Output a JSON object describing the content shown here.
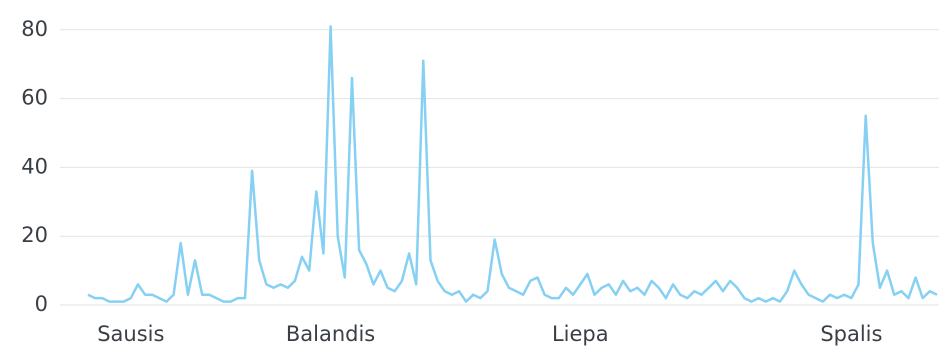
{
  "chart_data": {
    "type": "line",
    "categories": [
      null,
      null,
      null,
      null,
      null,
      null,
      "Sausis",
      null,
      null,
      null,
      null,
      null,
      null,
      null,
      null,
      null,
      null,
      null,
      null,
      null,
      null,
      null,
      null,
      null,
      null,
      null,
      null,
      null,
      null,
      null,
      null,
      null,
      null,
      null,
      "Balandis",
      null,
      null,
      null,
      null,
      null,
      null,
      null,
      null,
      null,
      null,
      null,
      null,
      null,
      null,
      null,
      null,
      null,
      null,
      null,
      null,
      null,
      null,
      null,
      null,
      null,
      null,
      null,
      null,
      null,
      null,
      null,
      null,
      null,
      null,
      "Liepa",
      null,
      null,
      null,
      null,
      null,
      null,
      null,
      null,
      null,
      null,
      null,
      null,
      null,
      null,
      null,
      null,
      null,
      null,
      null,
      null,
      null,
      null,
      null,
      null,
      null,
      null,
      null,
      null,
      null,
      null,
      null,
      null,
      null,
      null,
      null,
      null,
      null,
      "Spalis",
      null,
      null,
      null,
      null,
      null,
      null,
      null,
      null,
      null,
      null,
      null,
      null
    ],
    "values": [
      3,
      2,
      2,
      1,
      1,
      1,
      2,
      6,
      3,
      3,
      2,
      1,
      3,
      18,
      3,
      13,
      3,
      3,
      2,
      1,
      1,
      2,
      2,
      39,
      13,
      6,
      5,
      6,
      5,
      7,
      14,
      10,
      33,
      15,
      81,
      20,
      8,
      66,
      16,
      12,
      6,
      10,
      5,
      4,
      7,
      15,
      6,
      71,
      13,
      7,
      4,
      3,
      4,
      1,
      3,
      2,
      4,
      19,
      9,
      5,
      4,
      3,
      7,
      8,
      3,
      2,
      2,
      5,
      3,
      6,
      9,
      3,
      5,
      6,
      3,
      7,
      4,
      5,
      3,
      7,
      5,
      2,
      6,
      3,
      2,
      4,
      3,
      5,
      7,
      4,
      7,
      5,
      2,
      1,
      2,
      1,
      2,
      1,
      4,
      10,
      6,
      3,
      2,
      1,
      3,
      2,
      3,
      2,
      6,
      55,
      18,
      5,
      10,
      3,
      4,
      2,
      8,
      2,
      4,
      3
    ],
    "color": "#86d0f3",
    "ylim": [
      0,
      85
    ],
    "yticks": [
      0,
      20,
      40,
      60,
      80
    ],
    "grid": true
  }
}
